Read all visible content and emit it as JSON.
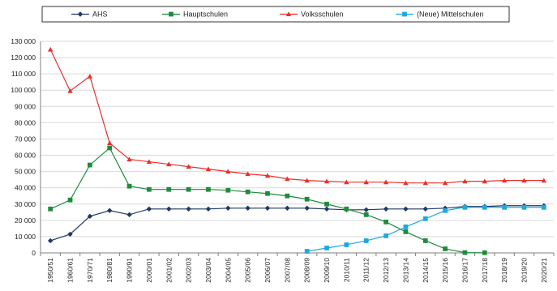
{
  "chart_data": {
    "type": "line",
    "categories": [
      "1950/51",
      "1960/61",
      "1970/71",
      "1980/81",
      "1990/91",
      "2000/01",
      "2001/02",
      "2002/03",
      "2003/04",
      "2004/05",
      "2005/06",
      "2006/07",
      "2007/08",
      "2008/09",
      "2009/10",
      "2010/11",
      "2011/12",
      "2012/13",
      "2013/14",
      "2014/15",
      "2015/16",
      "2016/17",
      "2017/18",
      "2018/19",
      "2019/20",
      "2020/21"
    ],
    "ylim": [
      0,
      130000
    ],
    "yticks": [
      0,
      10000,
      20000,
      30000,
      40000,
      50000,
      60000,
      70000,
      80000,
      90000,
      100000,
      110000,
      120000,
      130000
    ],
    "ytick_labels": [
      "0",
      "10 000",
      "20 000",
      "30 000",
      "40 000",
      "50 000",
      "60 000",
      "70 000",
      "80 000",
      "90 000",
      "100 000",
      "110 000",
      "120 000",
      "130 000"
    ],
    "grid": true,
    "legend_position": "top",
    "series": [
      {
        "name": "AHS",
        "color": "#1f3864",
        "marker": "diamond",
        "values": [
          7500,
          11500,
          22500,
          26000,
          23500,
          27000,
          27000,
          27000,
          27000,
          27500,
          27500,
          27500,
          27500,
          27500,
          27000,
          26500,
          26500,
          27000,
          27000,
          27000,
          27500,
          28500,
          28500,
          29000,
          29000,
          29000
        ]
      },
      {
        "name": "Hauptschulen",
        "color": "#1e8c3c",
        "marker": "square",
        "values": [
          27000,
          32500,
          54000,
          64500,
          41000,
          39000,
          39000,
          39000,
          39000,
          38500,
          37500,
          36500,
          35000,
          33000,
          30000,
          27000,
          23500,
          19000,
          13000,
          7500,
          2500,
          200,
          100,
          null,
          null,
          null
        ]
      },
      {
        "name": "Volksschulen",
        "color": "#e8302a",
        "marker": "triangle",
        "values": [
          125000,
          99500,
          108500,
          67500,
          57500,
          56000,
          54500,
          53000,
          51500,
          50000,
          48500,
          47500,
          45500,
          44500,
          44000,
          43500,
          43500,
          43500,
          43000,
          43000,
          43000,
          44000,
          44000,
          44500,
          44500,
          44500
        ]
      },
      {
        "name": "(Neue) Mittelschulen",
        "color": "#1ca8e0",
        "marker": "square",
        "values": [
          null,
          null,
          null,
          null,
          null,
          null,
          null,
          null,
          null,
          null,
          null,
          null,
          null,
          1000,
          3000,
          5000,
          7500,
          10500,
          16000,
          21000,
          26000,
          28000,
          28000,
          28000,
          28000,
          28000
        ]
      }
    ]
  }
}
